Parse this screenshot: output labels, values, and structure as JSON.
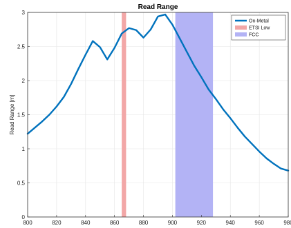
{
  "chart_data": {
    "type": "line",
    "title": "Read Range",
    "xlabel": "",
    "ylabel": "Read Range [m]",
    "xlim": [
      800,
      980
    ],
    "ylim": [
      0,
      3
    ],
    "x_ticks": [
      800,
      820,
      840,
      860,
      880,
      900,
      920,
      940,
      960,
      980
    ],
    "x_tick_labels": [
      "800",
      "820",
      "840",
      "860",
      "880",
      "900",
      "920",
      "940",
      "960",
      "980"
    ],
    "y_ticks": [
      0,
      0.5,
      1,
      1.5,
      2,
      2.5,
      3
    ],
    "y_tick_labels": [
      "0",
      "0.5",
      "1",
      "1.5",
      "2",
      "2.5",
      "3"
    ],
    "grid": true,
    "legend_position": "top-right",
    "series": [
      {
        "name": "On-Metal",
        "color": "#0072bd",
        "x": [
          800,
          805,
          810,
          815,
          820,
          825,
          830,
          835,
          840,
          845,
          850,
          855,
          860,
          865,
          870,
          875,
          880,
          885,
          890,
          895,
          900,
          905,
          910,
          915,
          920,
          925,
          930,
          935,
          940,
          945,
          950,
          955,
          960,
          965,
          970,
          975,
          980
        ],
        "y": [
          1.22,
          1.31,
          1.4,
          1.5,
          1.62,
          1.76,
          1.95,
          2.17,
          2.38,
          2.58,
          2.49,
          2.31,
          2.48,
          2.69,
          2.77,
          2.74,
          2.63,
          2.75,
          2.94,
          2.97,
          2.82,
          2.62,
          2.42,
          2.22,
          2.05,
          1.87,
          1.73,
          1.58,
          1.45,
          1.31,
          1.18,
          1.07,
          0.96,
          0.86,
          0.78,
          0.71,
          0.68
        ]
      }
    ],
    "bands": [
      {
        "name": "ETSI Low",
        "x_start": 865,
        "x_end": 868,
        "color": "#f2a7a7"
      },
      {
        "name": "FCC",
        "x_start": 902,
        "x_end": 928,
        "color": "#b3b3f5"
      }
    ]
  }
}
